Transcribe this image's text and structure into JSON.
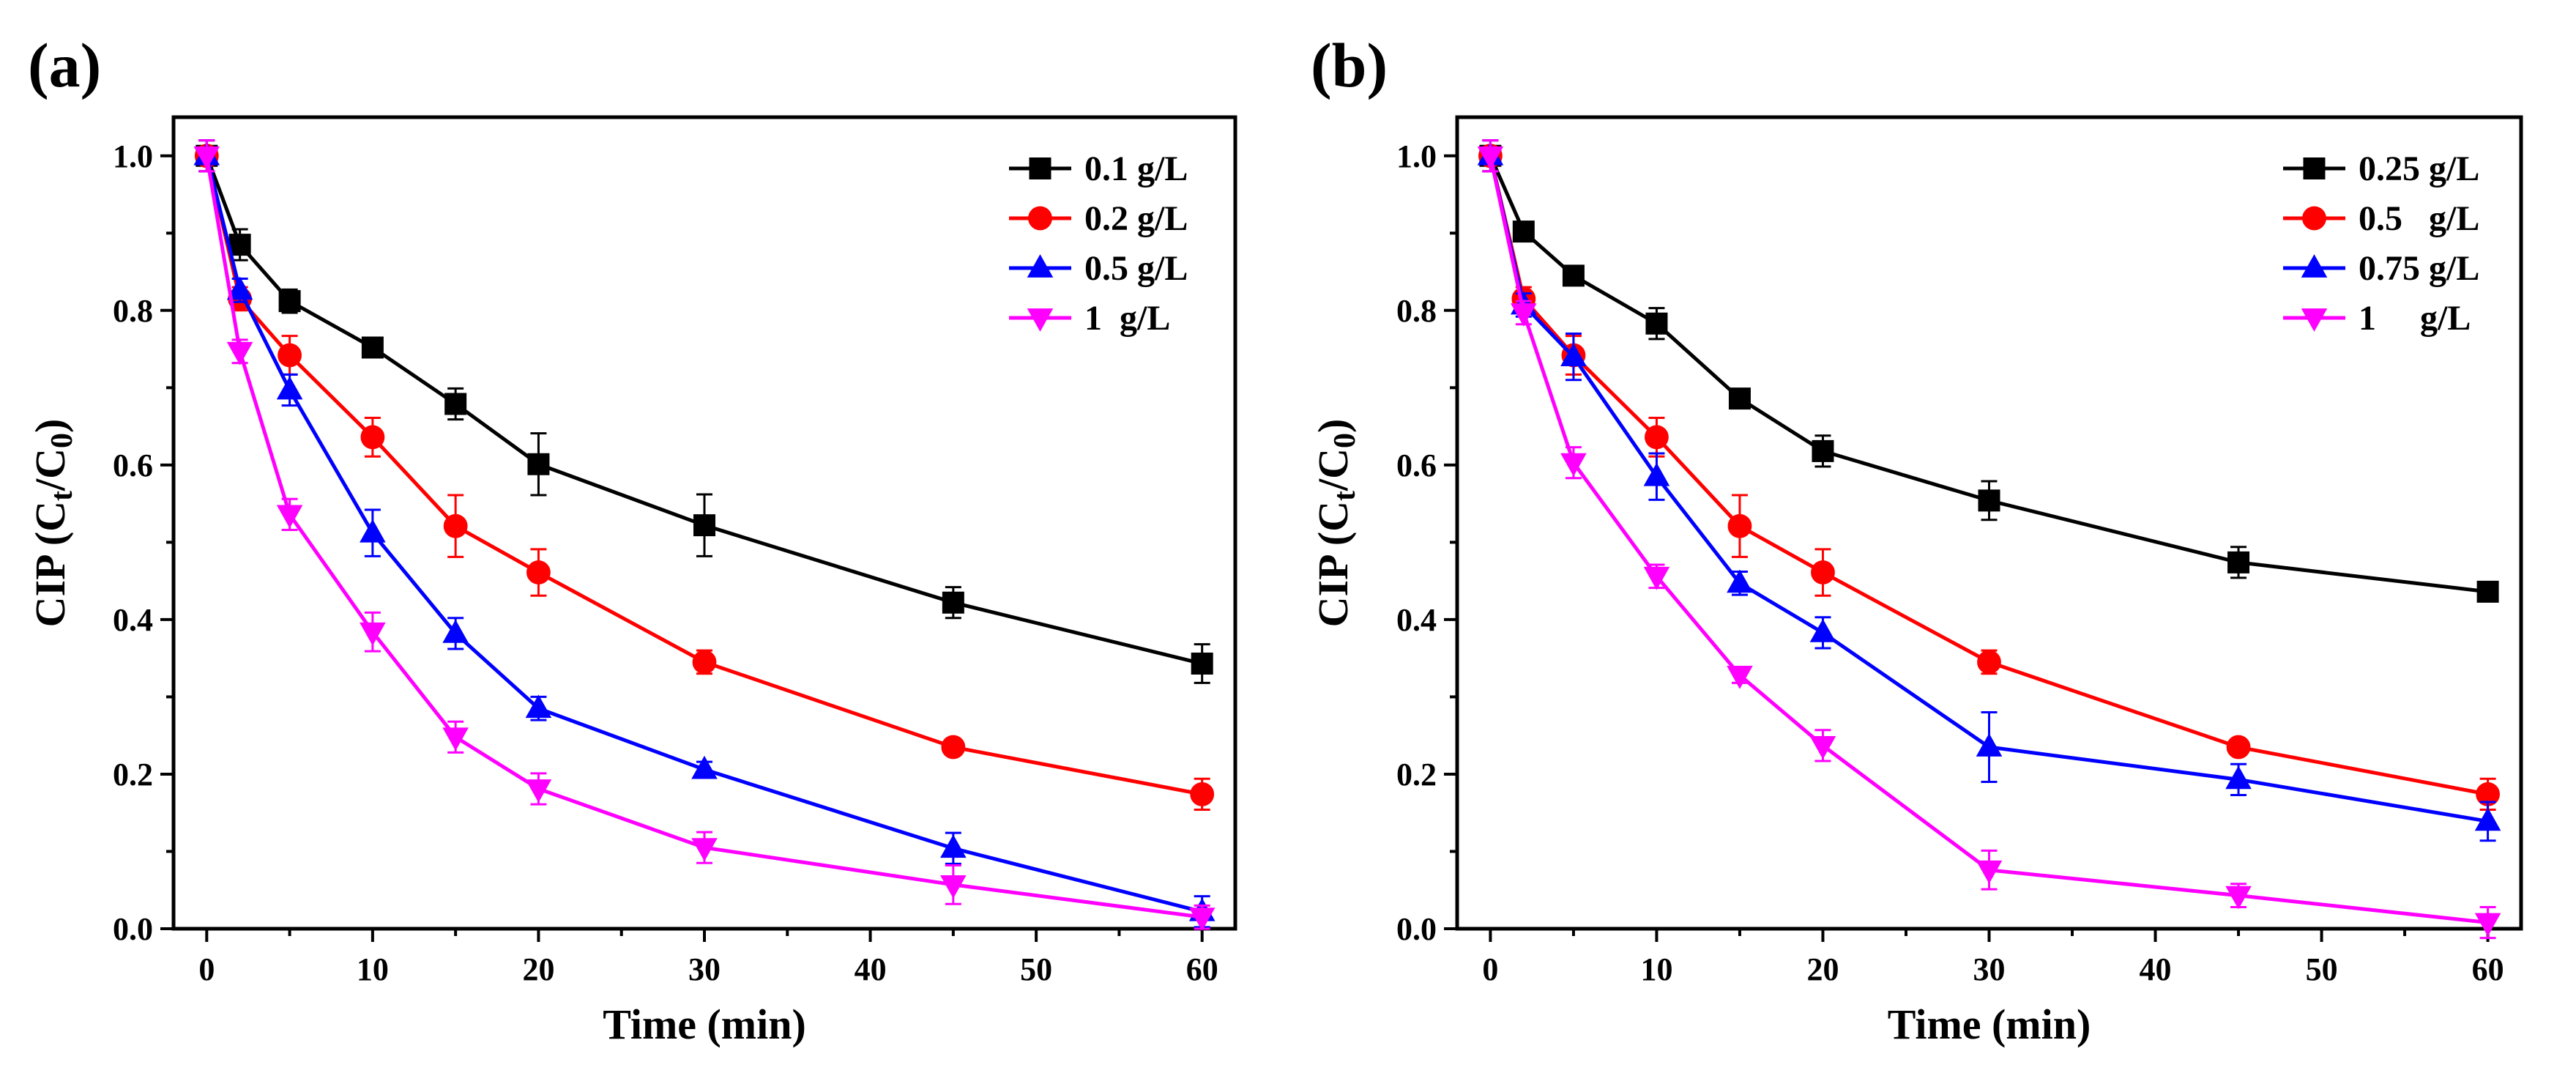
{
  "chart_data": [
    {
      "type": "line",
      "panel_label": "(a)",
      "xlabel": "Time (min)",
      "ylabel": "CIP (Ct/C0)",
      "xlim": [
        -2,
        62
      ],
      "ylim": [
        0,
        1.05
      ],
      "xticks": [
        0,
        10,
        20,
        30,
        40,
        50,
        60
      ],
      "yticks": [
        0.0,
        0.2,
        0.4,
        0.6,
        0.8,
        1.0
      ],
      "xtick_labels": [
        "0",
        "10",
        "20",
        "30",
        "40",
        "50",
        "60"
      ],
      "ytick_labels": [
        "0.0",
        "0.2",
        "0.4",
        "0.6",
        "0.8",
        "1.0"
      ],
      "legend_position": "top-right",
      "grid": false,
      "x": [
        0,
        2,
        5,
        10,
        15,
        20,
        30,
        45,
        60
      ],
      "series": [
        {
          "name": "0.1 g/L",
          "color": "#000000",
          "marker": "square",
          "values": [
            1.0,
            0.885,
            0.812,
            0.752,
            0.679,
            0.601,
            0.522,
            0.422,
            0.343
          ],
          "errors": [
            0.02,
            0.02,
            0.015,
            0.01,
            0.02,
            0.04,
            0.04,
            0.02,
            0.025
          ]
        },
        {
          "name": "0.2 g/L",
          "color": "#ff0000",
          "marker": "circle",
          "values": [
            1.0,
            0.815,
            0.742,
            0.636,
            0.521,
            0.461,
            0.345,
            0.235,
            0.174
          ],
          "errors": [
            0.02,
            0.015,
            0.025,
            0.025,
            0.04,
            0.03,
            0.015,
            0.01,
            0.02
          ]
        },
        {
          "name": "0.5 g/L",
          "color": "#0000ff",
          "marker": "triangle-up",
          "values": [
            1.0,
            0.826,
            0.697,
            0.512,
            0.382,
            0.285,
            0.206,
            0.104,
            0.022
          ],
          "errors": [
            0.02,
            0.015,
            0.02,
            0.03,
            0.02,
            0.015,
            0.01,
            0.02,
            0.02
          ]
        },
        {
          "name": "1  g/L",
          "color": "#ff00ff",
          "marker": "triangle-down",
          "values": [
            1.0,
            0.747,
            0.536,
            0.384,
            0.248,
            0.181,
            0.105,
            0.057,
            0.015
          ],
          "errors": [
            0.02,
            0.015,
            0.02,
            0.025,
            0.02,
            0.02,
            0.02,
            0.025,
            0.015
          ]
        }
      ]
    },
    {
      "type": "line",
      "panel_label": "(b)",
      "xlabel": "Time (min)",
      "ylabel": "CIP (Ct/C0)",
      "xlim": [
        -2,
        62
      ],
      "ylim": [
        0,
        1.05
      ],
      "xticks": [
        0,
        10,
        20,
        30,
        40,
        50,
        60
      ],
      "yticks": [
        0.0,
        0.2,
        0.4,
        0.6,
        0.8,
        1.0
      ],
      "xtick_labels": [
        "0",
        "10",
        "20",
        "30",
        "40",
        "50",
        "60"
      ],
      "ytick_labels": [
        "0.0",
        "0.2",
        "0.4",
        "0.6",
        "0.8",
        "1.0"
      ],
      "legend_position": "top-right",
      "grid": false,
      "x": [
        0,
        2,
        5,
        10,
        15,
        20,
        30,
        45,
        60
      ],
      "series": [
        {
          "name": "0.25 g/L",
          "color": "#000000",
          "marker": "square",
          "values": [
            1.0,
            0.902,
            0.845,
            0.783,
            0.686,
            0.618,
            0.554,
            0.474,
            0.436
          ],
          "errors": [
            0.02,
            0.01,
            0.01,
            0.02,
            0.01,
            0.02,
            0.025,
            0.02,
            0.01
          ]
        },
        {
          "name": "0.5   g/L",
          "color": "#ff0000",
          "marker": "circle",
          "values": [
            1.0,
            0.815,
            0.742,
            0.636,
            0.521,
            0.461,
            0.345,
            0.235,
            0.174
          ],
          "errors": [
            0.02,
            0.015,
            0.025,
            0.025,
            0.04,
            0.03,
            0.015,
            0.01,
            0.02
          ]
        },
        {
          "name": "0.75 g/L",
          "color": "#0000ff",
          "marker": "triangle-up",
          "values": [
            1.0,
            0.807,
            0.74,
            0.585,
            0.447,
            0.383,
            0.235,
            0.193,
            0.139
          ],
          "errors": [
            0.02,
            0.015,
            0.03,
            0.03,
            0.015,
            0.02,
            0.045,
            0.02,
            0.025
          ]
        },
        {
          "name": "1     g/L",
          "color": "#ff00ff",
          "marker": "triangle-down",
          "values": [
            1.0,
            0.797,
            0.603,
            0.456,
            0.328,
            0.237,
            0.076,
            0.043,
            0.008
          ],
          "errors": [
            0.02,
            0.015,
            0.02,
            0.015,
            0.01,
            0.02,
            0.025,
            0.015,
            0.02
          ]
        }
      ]
    }
  ]
}
